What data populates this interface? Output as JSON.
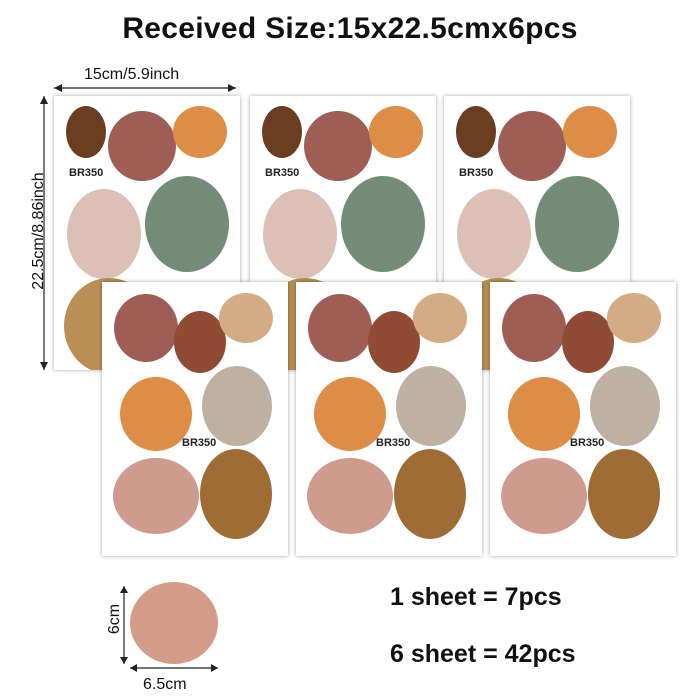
{
  "title": "Received Size:15x22.5cmx6pcs",
  "width_label": "15cm/5.9inch",
  "height_label": "22.5cm/8.86inch",
  "sheet_code": "BR350",
  "dot_width_label": "6.5cm",
  "dot_height_label": "6cm",
  "info_line1": "1 sheet = 7pcs",
  "info_line2": "6 sheet = 42pcs",
  "colors": {
    "dark_brown": "#6a3e20",
    "rosewood": "#9e5e55",
    "orange": "#dd8d45",
    "blush": "#dcc0b5",
    "sage": "#738c77",
    "mustard": "#b98f55",
    "rust": "#8f4b33",
    "tan": "#d3ac85",
    "taupe": "#bfb1a2",
    "pink": "#cf9b8e",
    "ochre": "#a06c36",
    "dot": "#d49b88"
  }
}
